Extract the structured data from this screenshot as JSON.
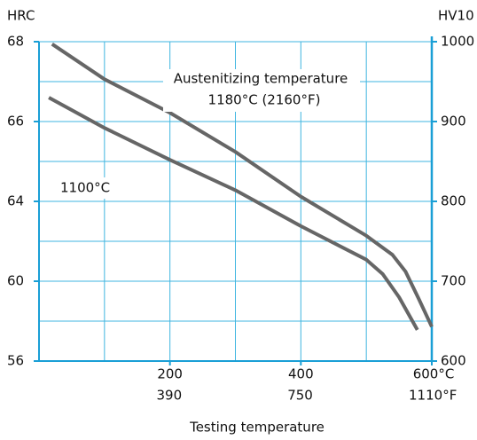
{
  "chart_data": {
    "type": "line",
    "ylabel": "HRC",
    "y2label": "HV10",
    "xlabel": "Testing temperature",
    "xlim": [
      0,
      600
    ],
    "xticks": [
      200,
      400,
      {
        "value": 600,
        "label": "600°C"
      }
    ],
    "xgrid": [
      100,
      200,
      300,
      400,
      500,
      600
    ],
    "x2lim": [
      32,
      1112
    ],
    "x2ticks": [
      390,
      750,
      {
        "value": 1110,
        "label": "1110°F"
      }
    ],
    "ylim": [
      56,
      68
    ],
    "yticks": [
      56,
      60,
      64,
      66,
      68
    ],
    "y2lim": [
      600,
      1000
    ],
    "y2ticks": [
      600,
      700,
      800,
      900,
      1000
    ],
    "y2grid": [
      650,
      700,
      750,
      800,
      850,
      900,
      950,
      1000
    ],
    "grid": true,
    "grid_color": "#3fb6e0",
    "annotations": [
      "Austenitizing temperature",
      "1180°C (2160°F)",
      "1100°C"
    ],
    "series": [
      {
        "color": "#666666",
        "axis": "y2",
        "x": [
          20,
          100,
          200,
          300,
          400,
          500,
          540,
          560,
          580,
          600
        ],
        "values": [
          997,
          953,
          911,
          862,
          806,
          757,
          733,
          712,
          678,
          643
        ]
      },
      {
        "color": "#666666",
        "axis": "y2",
        "x": [
          15,
          100,
          200,
          300,
          400,
          500,
          525,
          550,
          578
        ],
        "values": [
          930,
          892,
          852,
          814,
          769,
          727,
          709,
          680,
          639
        ]
      }
    ]
  }
}
